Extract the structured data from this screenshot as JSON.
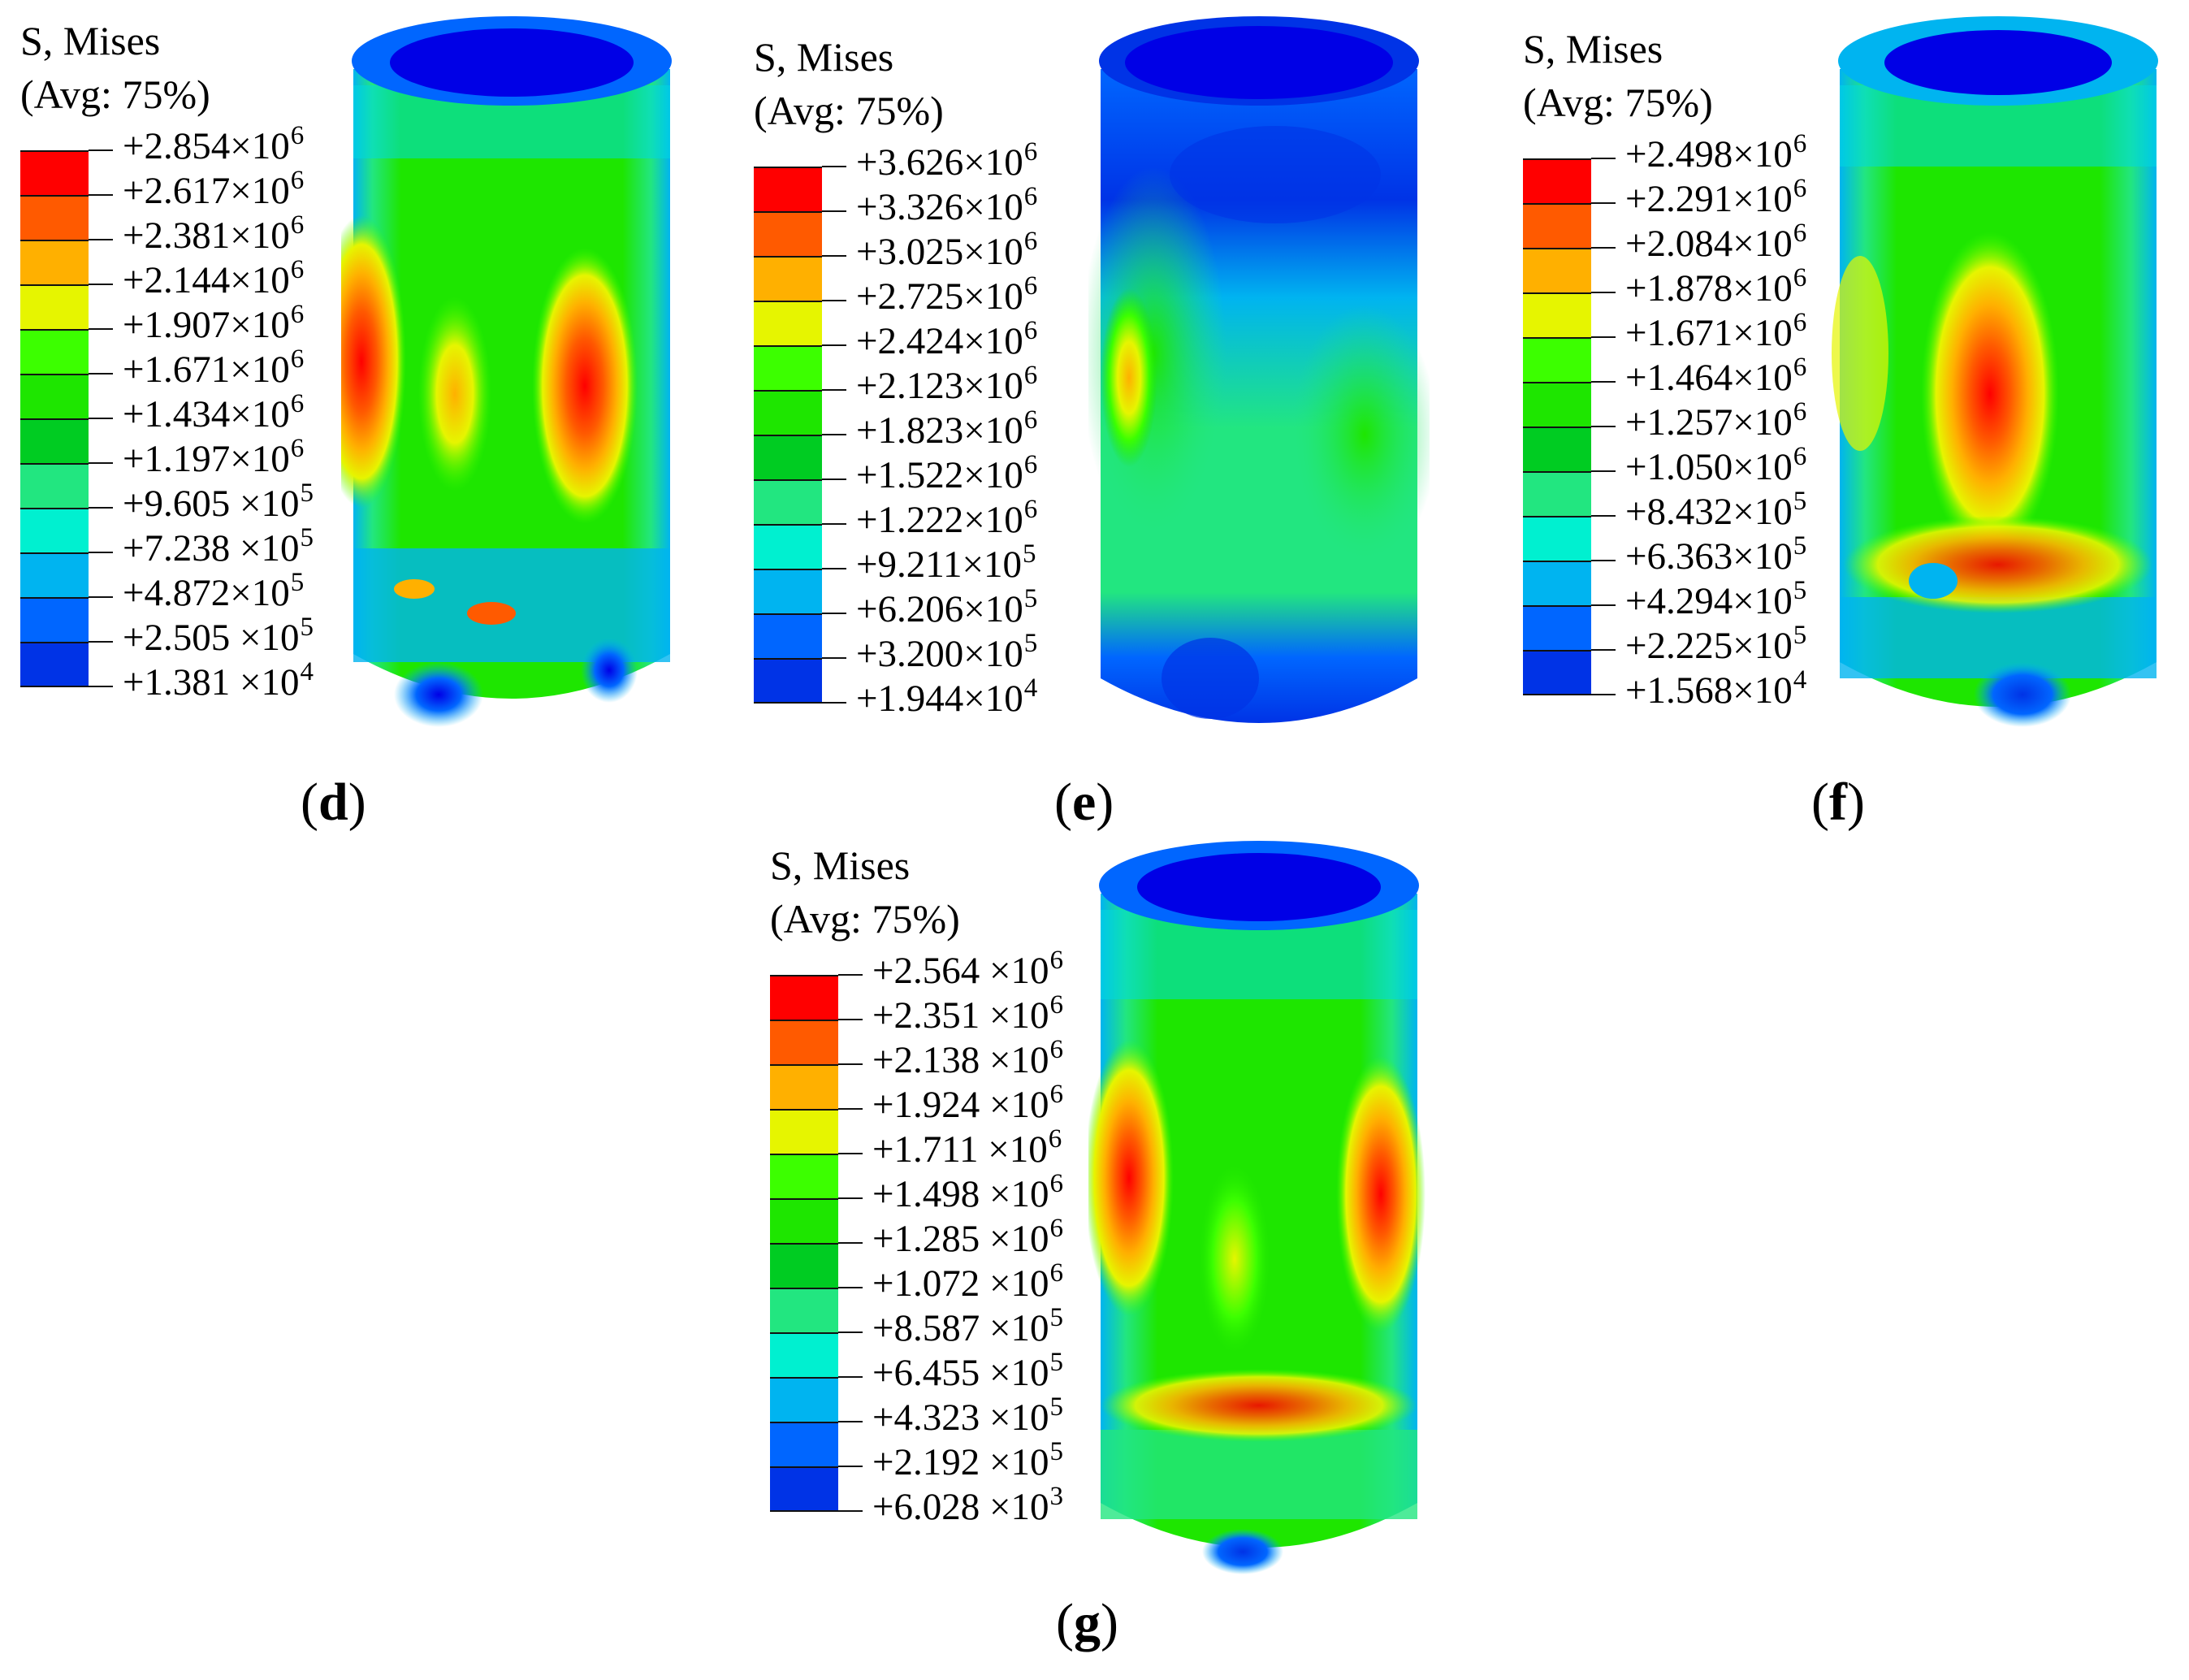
{
  "colors": [
    "#ff0000",
    "#ff5a00",
    "#ffb000",
    "#e6f500",
    "#3cff00",
    "#1ee600",
    "#00cc22",
    "#22e680",
    "#00f0d0",
    "#00b4f0",
    "#0066ff",
    "#0033e6",
    "#0000e6"
  ],
  "panels": [
    {
      "id": "d",
      "title": "S, Mises",
      "subtitle": "(Avg: 75%)",
      "labels": [
        {
          "m": "+2.854",
          "e": "6"
        },
        {
          "m": "+2.617",
          "e": "6"
        },
        {
          "m": "+2.381",
          "e": "6"
        },
        {
          "m": "+2.144",
          "e": "6"
        },
        {
          "m": "+1.907",
          "e": "6"
        },
        {
          "m": "+1.671",
          "e": "6"
        },
        {
          "m": "+1.434",
          "e": "6"
        },
        {
          "m": "+1.197",
          "e": "6"
        },
        {
          "m": "+9.605 ",
          "e": "5"
        },
        {
          "m": "+7.238 ",
          "e": "5"
        },
        {
          "m": "+4.872",
          "e": "5"
        },
        {
          "m": "+2.505 ",
          "e": "5"
        },
        {
          "m": "+1.381 ",
          "e": "4"
        }
      ],
      "caption": "d"
    },
    {
      "id": "e",
      "title": "S, Mises",
      "subtitle": "(Avg: 75%)",
      "labels": [
        {
          "m": "+3.626",
          "e": "6"
        },
        {
          "m": "+3.326",
          "e": "6"
        },
        {
          "m": "+3.025",
          "e": "6"
        },
        {
          "m": "+2.725",
          "e": "6"
        },
        {
          "m": "+2.424",
          "e": "6"
        },
        {
          "m": "+2.123",
          "e": "6"
        },
        {
          "m": "+1.823",
          "e": "6"
        },
        {
          "m": "+1.522",
          "e": "6"
        },
        {
          "m": "+1.222",
          "e": "6"
        },
        {
          "m": "+9.211",
          "e": "5"
        },
        {
          "m": "+6.206",
          "e": "5"
        },
        {
          "m": "+3.200",
          "e": "5"
        },
        {
          "m": "+1.944",
          "e": "4"
        }
      ],
      "caption": "e"
    },
    {
      "id": "f",
      "title": "S, Mises",
      "subtitle": "(Avg: 75%)",
      "labels": [
        {
          "m": "+2.498",
          "e": "6"
        },
        {
          "m": "+2.291",
          "e": "6"
        },
        {
          "m": "+2.084",
          "e": "6"
        },
        {
          "m": "+1.878",
          "e": "6"
        },
        {
          "m": "+1.671",
          "e": "6"
        },
        {
          "m": "+1.464",
          "e": "6"
        },
        {
          "m": "+1.257",
          "e": "6"
        },
        {
          "m": "+1.050",
          "e": "6"
        },
        {
          "m": "+8.432",
          "e": "5"
        },
        {
          "m": "+6.363",
          "e": "5"
        },
        {
          "m": "+4.294",
          "e": "5"
        },
        {
          "m": "+2.225",
          "e": "5"
        },
        {
          "m": "+1.568",
          "e": "4"
        }
      ],
      "caption": "f"
    },
    {
      "id": "g",
      "title": "S, Mises",
      "subtitle": "(Avg: 75%)",
      "labels": [
        {
          "m": "+2.564 ",
          "e": "6"
        },
        {
          "m": "+2.351 ",
          "e": "6"
        },
        {
          "m": "+2.138 ",
          "e": "6"
        },
        {
          "m": "+1.924 ",
          "e": "6"
        },
        {
          "m": "+1.711 ",
          "e": "6"
        },
        {
          "m": "+1.498 ",
          "e": "6"
        },
        {
          "m": "+1.285 ",
          "e": "6"
        },
        {
          "m": "+1.072 ",
          "e": "6"
        },
        {
          "m": "+8.587 ",
          "e": "5"
        },
        {
          "m": "+6.455 ",
          "e": "5"
        },
        {
          "m": "+4.323 ",
          "e": "5"
        },
        {
          "m": "+2.192 ",
          "e": "5"
        },
        {
          "m": "+6.028 ",
          "e": "3"
        }
      ],
      "caption": "g"
    }
  ],
  "multiply_sign": "×10",
  "paren_open": "(",
  "paren_close": ")"
}
